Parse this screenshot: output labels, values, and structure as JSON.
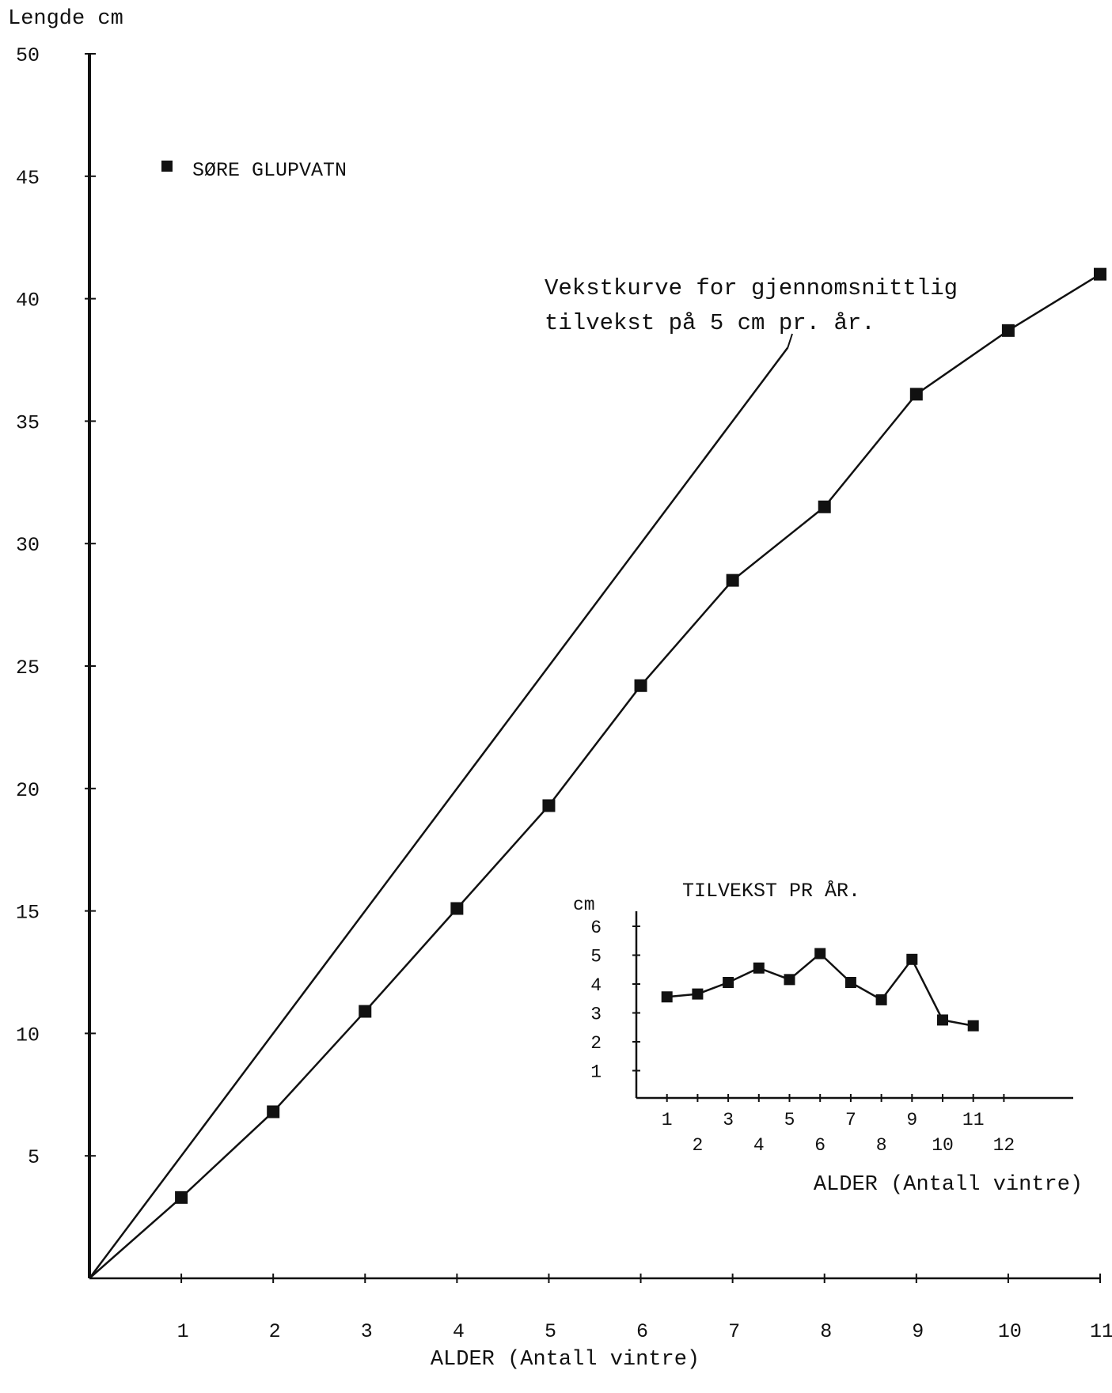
{
  "chart_data": [
    {
      "type": "line",
      "ylabel": "Lengde cm",
      "xlabel": "ALDER (Antall vintre)",
      "xlim": [
        0,
        11
      ],
      "ylim": [
        0,
        50
      ],
      "x_ticks": [
        1,
        2,
        3,
        4,
        5,
        6,
        7,
        8,
        9,
        10,
        11
      ],
      "y_ticks": [
        5,
        10,
        15,
        20,
        25,
        30,
        35,
        40,
        45,
        50
      ],
      "grid": false,
      "legend": {
        "position": "top-left",
        "entries": [
          {
            "label": "SØRE GLUPVATN",
            "marker": "square"
          }
        ]
      },
      "annotation": {
        "line1": "Vekstkurve for gjennomsnittlig",
        "line2": "tilvekst på 5 cm pr. år."
      },
      "series": [
        {
          "name": "SØRE GLUPVATN",
          "marker": "square",
          "x": [
            0,
            1,
            2,
            3,
            4,
            5,
            6,
            7,
            8,
            9,
            10,
            11
          ],
          "y": [
            0,
            3.3,
            6.8,
            10.9,
            15.1,
            19.3,
            24.2,
            28.5,
            31.5,
            36.1,
            38.7,
            41.0
          ]
        },
        {
          "marker": "none",
          "x": [
            0,
            7.6
          ],
          "y": [
            0,
            38.0
          ]
        }
      ]
    },
    {
      "type": "line",
      "title": "TILVEKST PR ÅR.",
      "ylabel": "cm",
      "xlabel": "ALDER (Antall vintre)",
      "xlim": [
        0,
        14
      ],
      "ylim": [
        0,
        6.5
      ],
      "x_ticks_row1": [
        "1",
        "3",
        "5",
        "7",
        "9",
        "11"
      ],
      "x_ticks_row2": [
        "2",
        "4",
        "6",
        "8",
        "10",
        "12"
      ],
      "y_ticks": [
        1,
        2,
        3,
        4,
        5,
        6
      ],
      "series": [
        {
          "marker": "square",
          "x": [
            1,
            2,
            3,
            4,
            5,
            6,
            7,
            8,
            9,
            10,
            11
          ],
          "y": [
            3.5,
            3.6,
            4.0,
            4.5,
            4.1,
            5.0,
            4.0,
            3.4,
            4.8,
            2.7,
            2.5
          ]
        }
      ]
    }
  ]
}
